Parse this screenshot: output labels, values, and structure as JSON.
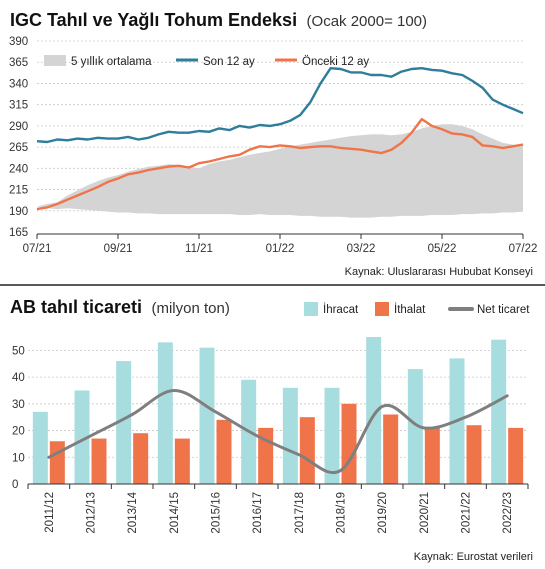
{
  "colors": {
    "teal": "#2e7d9a",
    "orange": "#f0744a",
    "gray_band": "#d4d4d4",
    "light_blue": "#a8dde0",
    "net_gray": "#7f7f7f",
    "grid": "#c8c8c8"
  },
  "chart_data": [
    {
      "type": "line",
      "title": "IGC Tahıl ve Yağlı Tohum  Endeksi",
      "subtitle": "(Ocak 2000= 100)",
      "ylim": [
        165,
        390
      ],
      "yticks": [
        "390",
        "365",
        "340",
        "315",
        "290",
        "265",
        "240",
        "215",
        "190",
        "165"
      ],
      "ytick_values": [
        390,
        365,
        340,
        315,
        290,
        265,
        240,
        215,
        190,
        165
      ],
      "xticks": [
        "07/21",
        "09/21",
        "11/21",
        "01/22",
        "03/22",
        "05/22",
        "07/22"
      ],
      "legend": [
        "5 yıllık ortalama",
        "Son 12 ay",
        "Önceki 12 ay"
      ],
      "source": "Kaynak: Uluslararası Hububat Konseyi",
      "x_months": [
        0,
        0.25,
        0.5,
        0.75,
        1,
        1.25,
        1.5,
        1.75,
        2,
        2.25,
        2.5,
        2.75,
        3,
        3.25,
        3.5,
        3.75,
        4,
        4.25,
        4.5,
        4.75,
        5,
        5.25,
        5.5,
        5.75,
        6,
        6.25,
        6.5,
        6.75,
        7,
        7.25,
        7.5,
        7.75,
        8,
        8.25,
        8.5,
        8.75,
        9,
        9.25,
        9.5,
        9.75,
        10,
        10.25,
        10.5,
        10.75,
        11,
        11.25,
        11.5,
        11.75,
        12
      ],
      "series": [
        {
          "name": "Son 12 ay",
          "values": [
            272,
            271,
            274,
            273,
            275,
            274,
            276,
            275,
            275,
            277,
            274,
            276,
            280,
            283,
            282,
            282,
            284,
            283,
            287,
            285,
            290,
            288,
            291,
            290,
            292,
            296,
            303,
            318,
            340,
            358,
            357,
            353,
            353,
            350,
            350,
            348,
            354,
            357,
            358,
            356,
            355,
            352,
            350,
            343,
            335,
            321,
            315,
            310,
            305
          ]
        },
        {
          "name": "Önceki 12 ay",
          "values": [
            192,
            194,
            198,
            203,
            208,
            213,
            218,
            224,
            228,
            233,
            235,
            238,
            240,
            242,
            243,
            241,
            246,
            248,
            251,
            254,
            256,
            262,
            266,
            265,
            267,
            266,
            264,
            265,
            266,
            266,
            264,
            263,
            262,
            260,
            258,
            262,
            270,
            282,
            298,
            290,
            286,
            281,
            280,
            277,
            267,
            266,
            264,
            266,
            268
          ]
        },
        {
          "name": "5 yıllık ortalama",
          "upper": [
            195,
            198,
            200,
            208,
            214,
            220,
            225,
            229,
            232,
            236,
            239,
            242,
            243,
            245,
            244,
            242,
            240,
            245,
            248,
            250,
            253,
            256,
            258,
            260,
            263,
            266,
            268,
            270,
            272,
            274,
            276,
            278,
            279,
            280,
            280,
            279,
            280,
            283,
            287,
            290,
            292,
            292,
            290,
            286,
            280,
            275,
            270,
            268,
            267
          ],
          "lower": [
            195,
            193,
            192,
            193,
            192,
            191,
            190,
            189,
            188,
            188,
            187,
            187,
            186,
            186,
            186,
            186,
            186,
            186,
            186,
            186,
            185,
            185,
            186,
            185,
            185,
            185,
            184,
            184,
            183,
            183,
            183,
            182,
            182,
            182,
            183,
            183,
            184,
            184,
            184,
            185,
            185,
            185,
            186,
            186,
            187,
            187,
            188,
            188,
            189
          ]
        }
      ]
    },
    {
      "type": "bar",
      "title": "AB tahıl ticareti",
      "subtitle": "(milyon ton)",
      "ylim": [
        0,
        55
      ],
      "yticks": [
        "50",
        "40",
        "30",
        "20",
        "10",
        "0"
      ],
      "ytick_values": [
        50,
        40,
        30,
        20,
        10,
        0
      ],
      "categories": [
        "2011/12",
        "2012/13",
        "2013/14",
        "2014/15",
        "2015/16",
        "2016/17",
        "2017/18",
        "2018/19",
        "2019/20",
        "2020/21",
        "2021/22",
        "2022/23"
      ],
      "legend": [
        "İhracat",
        "İthalat",
        "Net ticaret"
      ],
      "source": "Kaynak: Eurostat verileri",
      "series": [
        {
          "name": "İhracat",
          "values": [
            27,
            35,
            46,
            53,
            51,
            39,
            36,
            36,
            55,
            43,
            47,
            54
          ]
        },
        {
          "name": "İthalat",
          "values": [
            16,
            17,
            19,
            17,
            24,
            21,
            25,
            30,
            26,
            21,
            22,
            21
          ]
        },
        {
          "name": "Net ticaret",
          "values": [
            10,
            18,
            26,
            35,
            27,
            18,
            11,
            5,
            29,
            21,
            25,
            33
          ]
        }
      ]
    }
  ]
}
